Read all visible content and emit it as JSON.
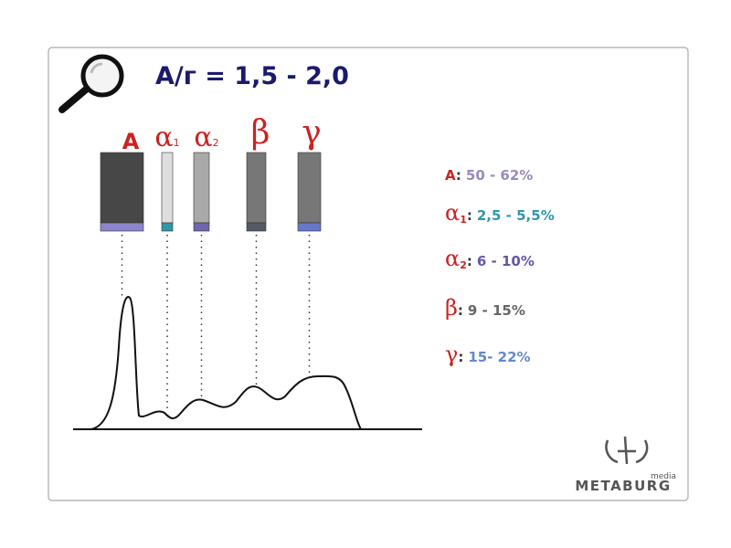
{
  "title": "А/г = 1,5 - 2,0",
  "fractions": [
    {
      "symbol": "A"
    },
    {
      "symbol": "α",
      "index": "1"
    },
    {
      "symbol": "α",
      "index": "2"
    },
    {
      "symbol": "β"
    },
    {
      "symbol": "γ"
    }
  ],
  "legend": {
    "separator": ":",
    "items": [
      {
        "symbol": "A",
        "range": "50 - 62%"
      },
      {
        "symbol": "α",
        "index": "1",
        "range": "2,5 - 5,5%"
      },
      {
        "symbol": "α",
        "index": "2",
        "range": "6 - 10%"
      },
      {
        "symbol": "β",
        "range": "9 - 15%"
      },
      {
        "symbol": "γ",
        "range": "15- 22%"
      }
    ]
  },
  "logo": {
    "name": "METABURG",
    "tag": "media"
  }
}
